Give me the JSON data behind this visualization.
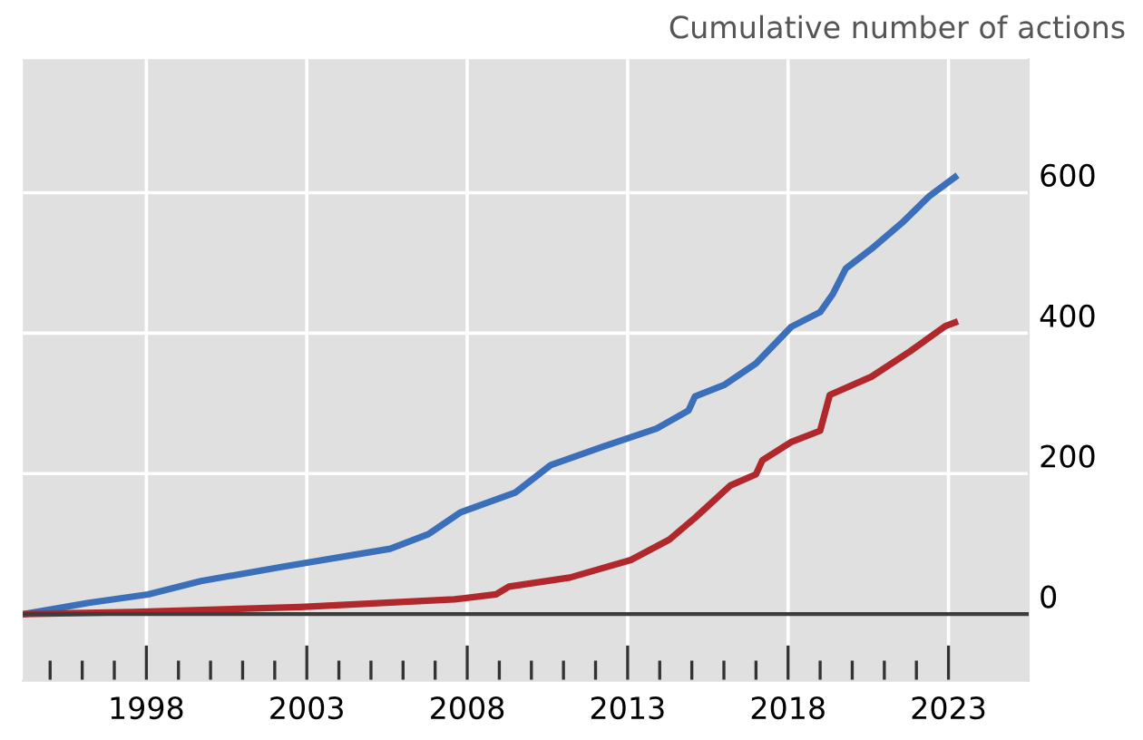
{
  "chart_data": {
    "type": "line",
    "title": "Cumulative number of actions",
    "series": [
      {
        "color": "#3b6fb9",
        "x": [
          1994.2,
          1996.2,
          1998.05,
          1999.7,
          2002.2,
          2005.6,
          2006.8,
          2007.8,
          2009.5,
          2010.6,
          2012.2,
          2013.9,
          2014.9,
          2015.1,
          2016.0,
          2017.0,
          2018.1,
          2019.0,
          2019.4,
          2019.8,
          2020.6,
          2021.6,
          2022.4,
          2023.2
        ],
        "values": [
          0,
          16,
          28,
          47,
          67,
          93,
          114,
          145,
          173,
          212,
          238,
          264,
          290,
          310,
          326,
          357,
          409,
          430,
          456,
          492,
          520,
          559,
          595,
          622
        ]
      },
      {
        "color": "#b0282b",
        "x": [
          1994.2,
          1997.6,
          2002.8,
          2007.6,
          2008.9,
          2009.3,
          2011.2,
          2013.1,
          2014.3,
          2015.1,
          2016.2,
          2017.0,
          2017.2,
          2018.1,
          2019.0,
          2019.3,
          2020.6,
          2021.8,
          2022.9,
          2023.2
        ],
        "values": [
          0,
          3,
          10,
          21,
          28,
          39,
          52,
          77,
          106,
          137,
          183,
          199,
          219,
          245,
          261,
          312,
          338,
          374,
          410,
          415
        ]
      }
    ],
    "xlim": [
      1994.15,
      2025.5
    ],
    "xticks": [
      {
        "value": 1995,
        "label": null
      },
      {
        "value": 1996,
        "label": null
      },
      {
        "value": 1997,
        "label": null
      },
      1998,
      {
        "value": 1999,
        "label": null
      },
      {
        "value": 2000,
        "label": null
      },
      {
        "value": 2001,
        "label": null
      },
      {
        "value": 2002,
        "label": null
      },
      2003,
      {
        "value": 2004,
        "label": null
      },
      {
        "value": 2005,
        "label": null
      },
      {
        "value": 2006,
        "label": null
      },
      {
        "value": 2007,
        "label": null
      },
      2008,
      {
        "value": 2009,
        "label": null
      },
      {
        "value": 2010,
        "label": null
      },
      {
        "value": 2011,
        "label": null
      },
      {
        "value": 2012,
        "label": null
      },
      2013,
      {
        "value": 2014,
        "label": null
      },
      {
        "value": 2015,
        "label": null
      },
      {
        "value": 2016,
        "label": null
      },
      {
        "value": 2017,
        "label": null
      },
      2018,
      {
        "value": 2019,
        "label": null
      },
      {
        "value": 2020,
        "label": null
      },
      {
        "value": 2021,
        "label": null
      },
      {
        "value": 2022,
        "label": null
      },
      2023
    ],
    "ylim": [
      -95,
      790
    ],
    "yticks": [
      0,
      200,
      400,
      600
    ],
    "ref_lines": [
      {
        "axis": "y",
        "value": 0,
        "color": "#3c3c3c"
      }
    ],
    "grid": true,
    "line_style": "solid",
    "marker": "none"
  }
}
